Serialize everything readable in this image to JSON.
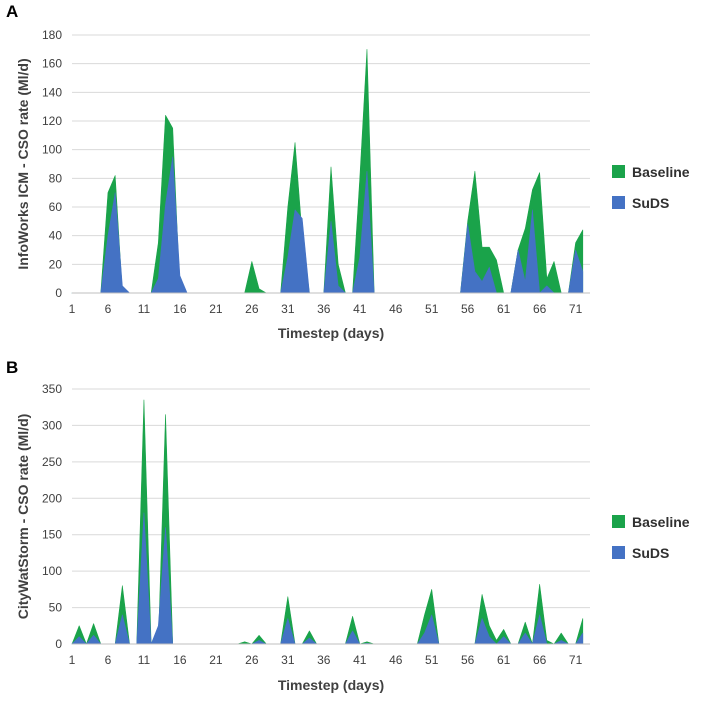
{
  "colors": {
    "baseline": "#1aa34a",
    "suds": "#4472c4"
  },
  "chart_data": [
    {
      "panel": "A",
      "type": "area",
      "title": "",
      "xlabel": "Timestep (days)",
      "ylabel": "InfoWorks ICM - CSO rate (Ml/d)",
      "xlim": [
        1,
        73
      ],
      "ylim": [
        0,
        180
      ],
      "yticks": [
        0,
        20,
        40,
        60,
        80,
        100,
        120,
        140,
        160,
        180
      ],
      "xticks": [
        1,
        6,
        11,
        16,
        21,
        26,
        31,
        36,
        41,
        46,
        51,
        56,
        61,
        66,
        71
      ],
      "legend": [
        "Baseline",
        "SuDS"
      ],
      "series": [
        {
          "name": "Baseline",
          "x": [
            1,
            2,
            3,
            4,
            5,
            6,
            7,
            8,
            9,
            10,
            11,
            12,
            13,
            14,
            15,
            16,
            17,
            18,
            19,
            20,
            21,
            22,
            23,
            24,
            25,
            26,
            27,
            28,
            29,
            30,
            31,
            32,
            33,
            34,
            35,
            36,
            37,
            38,
            39,
            40,
            41,
            42,
            43,
            44,
            45,
            46,
            47,
            48,
            49,
            50,
            51,
            52,
            53,
            54,
            55,
            56,
            57,
            58,
            59,
            60,
            61,
            62,
            63,
            64,
            65,
            66,
            67,
            68,
            69,
            70,
            71,
            72
          ],
          "values": [
            0,
            0,
            0,
            0,
            0,
            70,
            82,
            0,
            0,
            0,
            0,
            0,
            35,
            124,
            115,
            0,
            0,
            0,
            0,
            0,
            0,
            0,
            0,
            0,
            0,
            22,
            3,
            0,
            0,
            0,
            60,
            105,
            40,
            0,
            0,
            0,
            88,
            20,
            0,
            0,
            80,
            170,
            0,
            0,
            0,
            0,
            0,
            0,
            0,
            0,
            0,
            0,
            0,
            0,
            0,
            50,
            85,
            32,
            32,
            23,
            0,
            0,
            30,
            45,
            72,
            84,
            10,
            22,
            0,
            0,
            35,
            44
          ]
        },
        {
          "name": "SuDS",
          "x": [
            1,
            2,
            3,
            4,
            5,
            6,
            7,
            8,
            9,
            10,
            11,
            12,
            13,
            14,
            15,
            16,
            17,
            18,
            19,
            20,
            21,
            22,
            23,
            24,
            25,
            26,
            27,
            28,
            29,
            30,
            31,
            32,
            33,
            34,
            35,
            36,
            37,
            38,
            39,
            40,
            41,
            42,
            43,
            44,
            45,
            46,
            47,
            48,
            49,
            50,
            51,
            52,
            53,
            54,
            55,
            56,
            57,
            58,
            59,
            60,
            61,
            62,
            63,
            64,
            65,
            66,
            67,
            68,
            69,
            70,
            71,
            72
          ],
          "values": [
            0,
            0,
            0,
            0,
            0,
            40,
            70,
            5,
            0,
            0,
            0,
            0,
            10,
            62,
            95,
            12,
            0,
            0,
            0,
            0,
            0,
            0,
            0,
            0,
            0,
            0,
            0,
            0,
            0,
            0,
            25,
            58,
            52,
            0,
            0,
            0,
            50,
            5,
            0,
            0,
            25,
            85,
            0,
            0,
            0,
            0,
            0,
            0,
            0,
            0,
            0,
            0,
            0,
            0,
            0,
            48,
            15,
            8,
            18,
            0,
            0,
            0,
            30,
            8,
            58,
            0,
            5,
            0,
            0,
            0,
            30,
            15
          ]
        }
      ]
    },
    {
      "panel": "B",
      "type": "area",
      "title": "",
      "xlabel": "Timestep (days)",
      "ylabel": "CityWatStorm - CSO rate (Ml/d)",
      "xlim": [
        1,
        73
      ],
      "ylim": [
        0,
        350
      ],
      "yticks": [
        0,
        50,
        100,
        150,
        200,
        250,
        300,
        350
      ],
      "xticks": [
        1,
        6,
        11,
        16,
        21,
        26,
        31,
        36,
        41,
        46,
        51,
        56,
        61,
        66,
        71
      ],
      "legend": [
        "Baseline",
        "SuDS"
      ],
      "series": [
        {
          "name": "Baseline",
          "x": [
            1,
            2,
            3,
            4,
            5,
            6,
            7,
            8,
            9,
            10,
            11,
            12,
            13,
            14,
            15,
            16,
            17,
            18,
            19,
            20,
            21,
            22,
            23,
            24,
            25,
            26,
            27,
            28,
            29,
            30,
            31,
            32,
            33,
            34,
            35,
            36,
            37,
            38,
            39,
            40,
            41,
            42,
            43,
            44,
            45,
            46,
            47,
            48,
            49,
            50,
            51,
            52,
            53,
            54,
            55,
            56,
            57,
            58,
            59,
            60,
            61,
            62,
            63,
            64,
            65,
            66,
            67,
            68,
            69,
            70,
            71,
            72
          ],
          "values": [
            0,
            25,
            0,
            28,
            0,
            0,
            0,
            80,
            0,
            0,
            335,
            0,
            0,
            315,
            0,
            0,
            0,
            0,
            0,
            0,
            0,
            0,
            0,
            0,
            3,
            0,
            12,
            0,
            0,
            0,
            65,
            0,
            0,
            18,
            0,
            0,
            0,
            0,
            0,
            38,
            0,
            3,
            0,
            0,
            0,
            0,
            0,
            0,
            0,
            40,
            75,
            0,
            0,
            0,
            0,
            0,
            0,
            68,
            25,
            5,
            20,
            0,
            0,
            30,
            0,
            82,
            5,
            0,
            15,
            0,
            0,
            35
          ]
        },
        {
          "name": "SuDS",
          "x": [
            1,
            2,
            3,
            4,
            5,
            6,
            7,
            8,
            9,
            10,
            11,
            12,
            13,
            14,
            15,
            16,
            17,
            18,
            19,
            20,
            21,
            22,
            23,
            24,
            25,
            26,
            27,
            28,
            29,
            30,
            31,
            32,
            33,
            34,
            35,
            36,
            37,
            38,
            39,
            40,
            41,
            42,
            43,
            44,
            45,
            46,
            47,
            48,
            49,
            50,
            51,
            52,
            53,
            54,
            55,
            56,
            57,
            58,
            59,
            60,
            61,
            62,
            63,
            64,
            65,
            66,
            67,
            68,
            69,
            70,
            71,
            72
          ],
          "values": [
            0,
            10,
            0,
            12,
            0,
            0,
            0,
            40,
            0,
            0,
            180,
            0,
            25,
            160,
            0,
            0,
            0,
            0,
            0,
            0,
            0,
            0,
            0,
            0,
            0,
            0,
            5,
            0,
            0,
            0,
            35,
            0,
            0,
            8,
            0,
            0,
            0,
            0,
            0,
            18,
            0,
            1,
            0,
            0,
            0,
            0,
            0,
            0,
            0,
            15,
            40,
            0,
            0,
            0,
            0,
            0,
            0,
            35,
            10,
            0,
            10,
            0,
            0,
            15,
            0,
            40,
            0,
            0,
            5,
            0,
            0,
            15
          ]
        }
      ]
    }
  ]
}
